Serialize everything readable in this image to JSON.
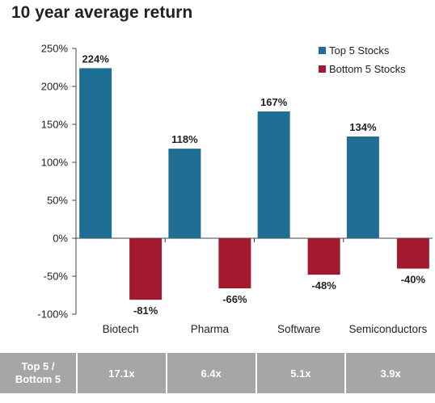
{
  "chart_data": {
    "type": "bar",
    "title": "10 year average return",
    "categories": [
      "Biotech",
      "Pharma",
      "Software",
      "Semiconductors"
    ],
    "series": [
      {
        "name": "Top 5 Stocks",
        "color": "#1f6e94",
        "values": [
          224,
          118,
          167,
          134
        ],
        "labels": [
          "224%",
          "118%",
          "167%",
          "134%"
        ]
      },
      {
        "name": "Bottom 5 Stocks",
        "color": "#a3192f",
        "values": [
          -81,
          -66,
          -48,
          -40
        ],
        "labels": [
          "-81%",
          "-66%",
          "-48%",
          "-40%"
        ]
      }
    ],
    "yticks": [
      -100,
      -50,
      0,
      50,
      100,
      150,
      200,
      250
    ],
    "ytick_labels": [
      "-100%",
      "-50%",
      "0%",
      "50%",
      "100%",
      "150%",
      "200%",
      "250%"
    ],
    "ylim": [
      -100,
      250
    ],
    "xlabel": "",
    "ylabel": "",
    "grid": false,
    "legend_position": "top-right"
  },
  "summary_table": {
    "row_header_line1": "Top 5 /",
    "row_header_line2": "Bottom 5",
    "ratios": [
      "17.1x",
      "6.4x",
      "5.1x",
      "3.9x"
    ],
    "background_color": "#a6a6a6"
  }
}
